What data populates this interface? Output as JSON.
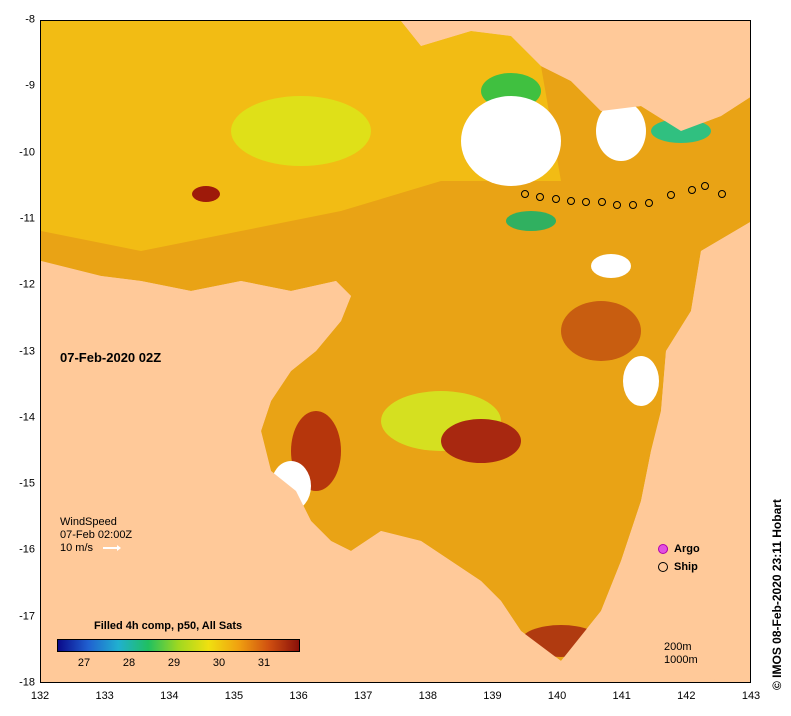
{
  "map": {
    "x_ticks": [
      "132",
      "133",
      "134",
      "135",
      "136",
      "137",
      "138",
      "139",
      "140",
      "141",
      "142",
      "143"
    ],
    "y_ticks": [
      "-8",
      "-9",
      "-10",
      "-11",
      "-12",
      "-13",
      "-14",
      "-15",
      "-16",
      "-17",
      "-18"
    ],
    "timestamp": "07-Feb-2020 02Z",
    "wind": {
      "title": "WindSpeed",
      "time": "07-Feb 02:00Z",
      "scale": "10 m/s"
    },
    "legend_title": "Filled 4h comp, p50, All Sats",
    "colorbar_ticks": [
      "27",
      "28",
      "29",
      "30",
      "31"
    ],
    "depth_labels": [
      "200m",
      "1000m"
    ],
    "symbols": {
      "argo": "Argo",
      "ship": "Ship"
    },
    "credit": "© IMOS 08-Feb-2020 23:11 Hobart",
    "colors": {
      "land": "#ffc999",
      "warm": "#e08a10",
      "hot": "#a0220a",
      "mid": "#f0c010",
      "cool": "#30c040",
      "cloud": "#ffffff",
      "argo": "#e24fe0"
    }
  }
}
